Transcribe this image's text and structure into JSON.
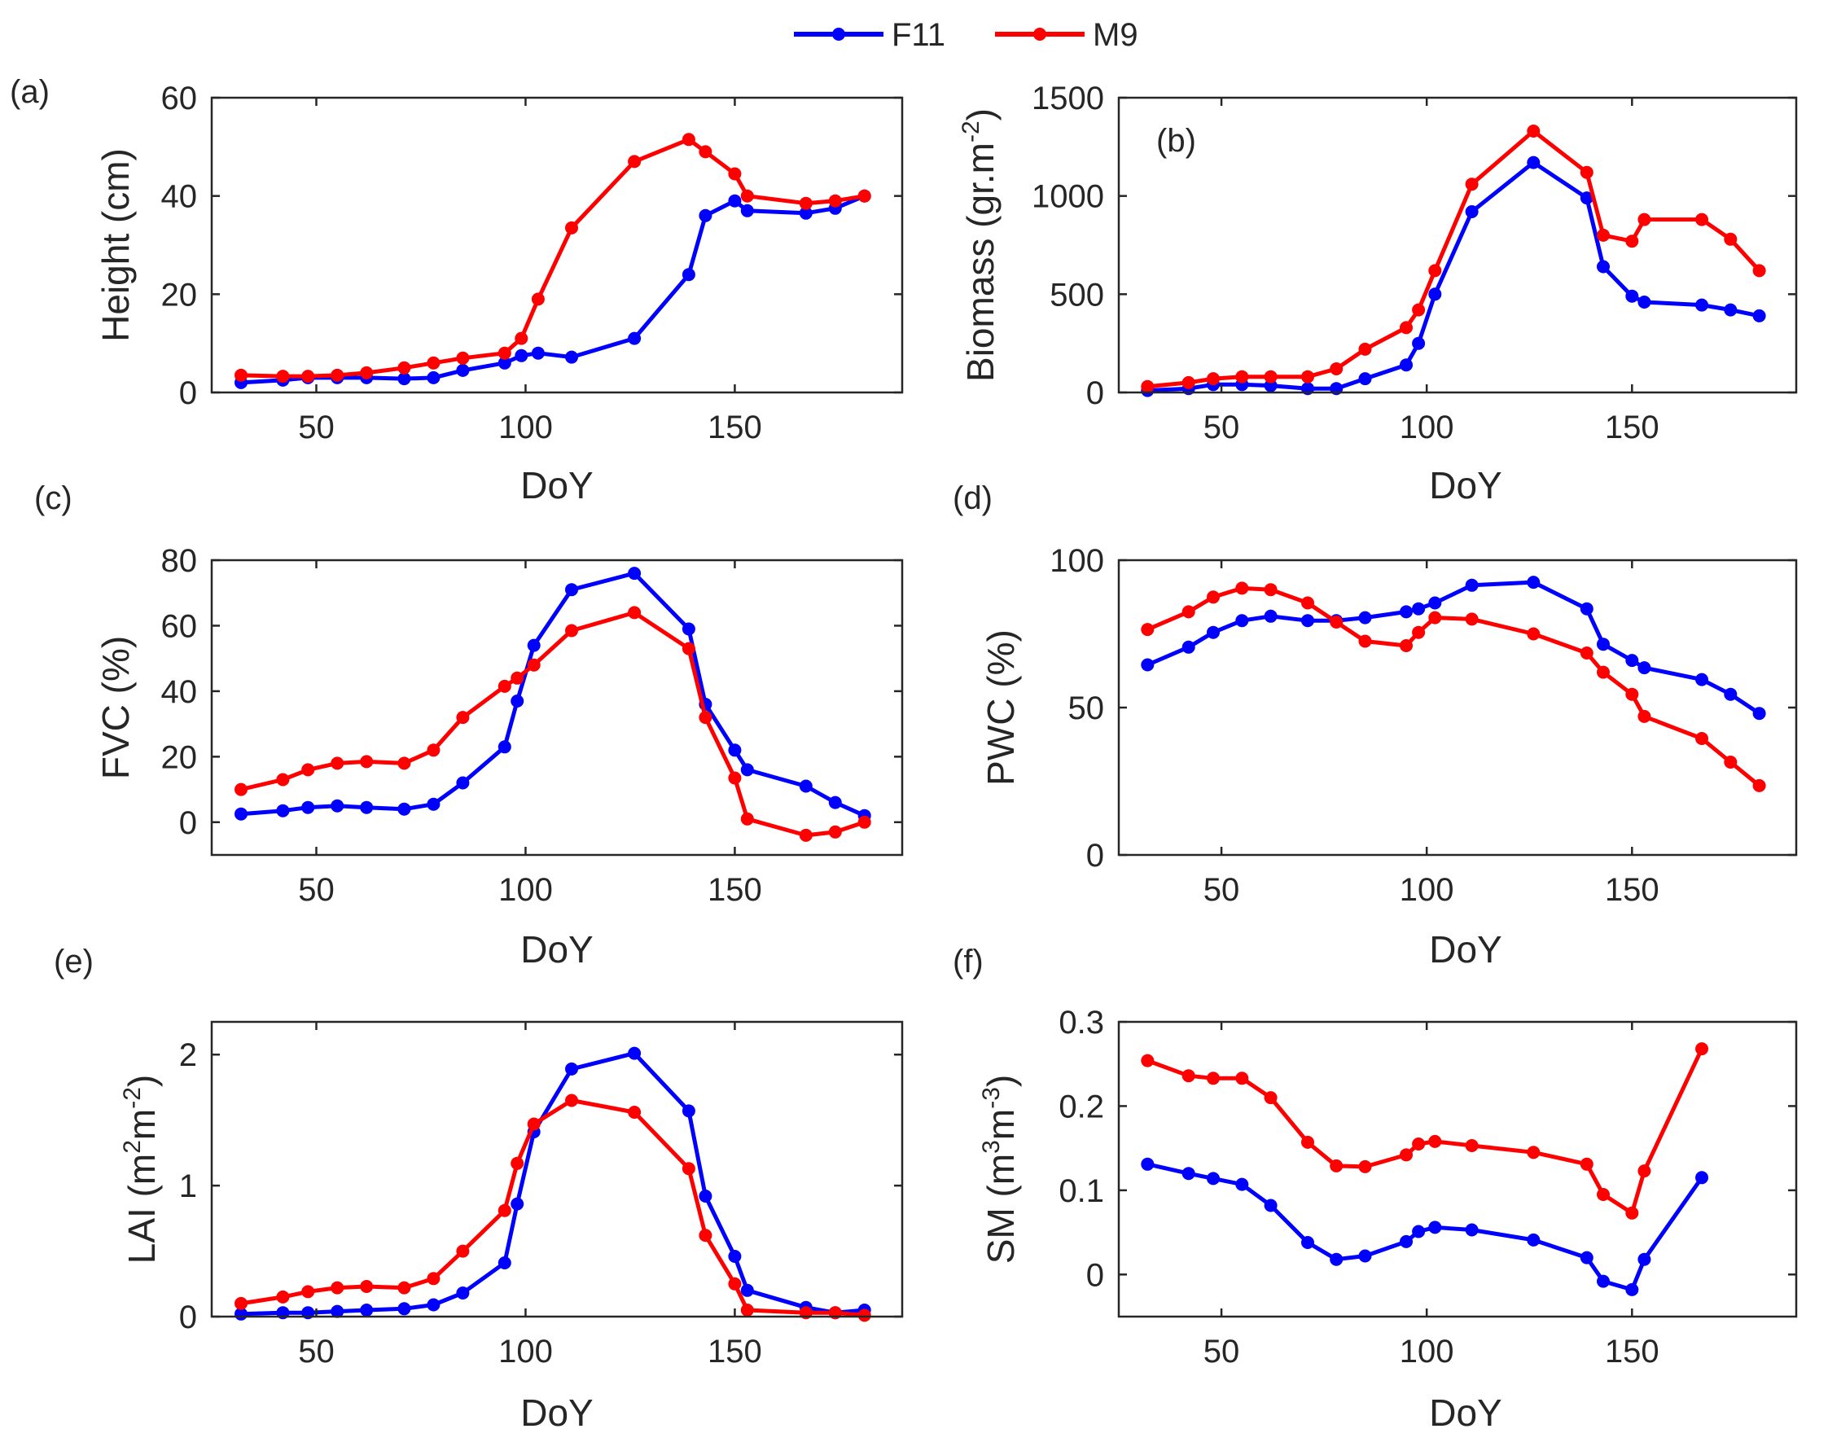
{
  "legend": {
    "entries": [
      {
        "name": "F11",
        "color": "#0000ff"
      },
      {
        "name": "M9",
        "color": "#ff0000"
      }
    ]
  },
  "chart_data": [
    {
      "id": "a",
      "tag": "(a)",
      "type": "line",
      "title": "",
      "xlabel": "DoY",
      "ylabel": "Height (cm)",
      "xlim": [
        25,
        190
      ],
      "ylim": [
        0,
        60
      ],
      "xticks": [
        50,
        100,
        150
      ],
      "yticks": [
        0,
        20,
        40,
        60
      ],
      "series": [
        {
          "name": "F11",
          "color": "#0000ff",
          "x": [
            32,
            42,
            48,
            55,
            62,
            71,
            78,
            85,
            95,
            99,
            103,
            111,
            126,
            139,
            143,
            150,
            153,
            167,
            174,
            181
          ],
          "y": [
            2,
            2.5,
            3,
            3,
            3,
            2.8,
            3,
            4.5,
            6,
            7.5,
            8,
            7.2,
            11,
            24,
            36,
            39,
            37,
            36.5,
            37.5,
            40
          ]
        },
        {
          "name": "M9",
          "color": "#ff0000",
          "x": [
            32,
            42,
            48,
            55,
            62,
            71,
            78,
            85,
            95,
            99,
            103,
            111,
            126,
            139,
            143,
            150,
            153,
            167,
            174,
            181
          ],
          "y": [
            3.5,
            3.3,
            3.3,
            3.5,
            4,
            5,
            6,
            7,
            8,
            11,
            19,
            33.5,
            47,
            51.5,
            49,
            44.5,
            40,
            38.5,
            39,
            40
          ]
        }
      ]
    },
    {
      "id": "b",
      "tag": "(b)",
      "type": "line",
      "title": "",
      "xlabel": "DoY",
      "ylabel": "Biomass (gr.m",
      "ylabel_superscript": "-2",
      "ylabel_suffix": ")",
      "xlim": [
        25,
        190
      ],
      "ylim": [
        0,
        1500
      ],
      "xticks": [
        50,
        100,
        150
      ],
      "yticks": [
        0,
        500,
        1000,
        1500
      ],
      "series": [
        {
          "name": "F11",
          "color": "#0000ff",
          "x": [
            32,
            42,
            48,
            55,
            62,
            71,
            78,
            85,
            95,
            98,
            102,
            111,
            126,
            139,
            143,
            150,
            153,
            167,
            174,
            181
          ],
          "y": [
            10,
            20,
            40,
            40,
            35,
            20,
            20,
            70,
            140,
            250,
            500,
            920,
            1170,
            990,
            640,
            490,
            460,
            445,
            420,
            390
          ]
        },
        {
          "name": "M9",
          "color": "#ff0000",
          "x": [
            32,
            42,
            48,
            55,
            62,
            71,
            78,
            85,
            95,
            98,
            102,
            111,
            126,
            139,
            143,
            150,
            153,
            167,
            174,
            181
          ],
          "y": [
            30,
            50,
            70,
            80,
            80,
            80,
            120,
            220,
            330,
            420,
            620,
            1060,
            1330,
            1120,
            800,
            770,
            880,
            880,
            780,
            620
          ]
        }
      ]
    },
    {
      "id": "c",
      "tag": "(c)",
      "type": "line",
      "title": "",
      "xlabel": "DoY",
      "ylabel": "FVC (%)",
      "xlim": [
        25,
        190
      ],
      "ylim": [
        -10,
        80
      ],
      "xticks": [
        50,
        100,
        150
      ],
      "yticks": [
        0,
        20,
        40,
        60,
        80
      ],
      "series": [
        {
          "name": "F11",
          "color": "#0000ff",
          "x": [
            32,
            42,
            48,
            55,
            62,
            71,
            78,
            85,
            95,
            98,
            102,
            111,
            126,
            139,
            143,
            150,
            153,
            167,
            174,
            181
          ],
          "y": [
            2.5,
            3.5,
            4.5,
            5,
            4.5,
            4,
            5.5,
            12,
            23,
            37,
            54,
            71,
            76,
            59,
            36,
            22,
            16,
            11,
            6,
            2
          ]
        },
        {
          "name": "M9",
          "color": "#ff0000",
          "x": [
            32,
            42,
            48,
            55,
            62,
            71,
            78,
            85,
            95,
            98,
            102,
            111,
            126,
            139,
            143,
            150,
            153,
            167,
            174,
            181
          ],
          "y": [
            10,
            13,
            16,
            18,
            18.5,
            18,
            22,
            32,
            41.5,
            44,
            48,
            58.5,
            64,
            53,
            32,
            13.5,
            1,
            -4,
            -3,
            0
          ]
        }
      ]
    },
    {
      "id": "d",
      "tag": "(d)",
      "type": "line",
      "title": "",
      "xlabel": "DoY",
      "ylabel": "PWC (%)",
      "xlim": [
        25,
        190
      ],
      "ylim": [
        0,
        100
      ],
      "xticks": [
        50,
        100,
        150
      ],
      "yticks": [
        0,
        50,
        100
      ],
      "series": [
        {
          "name": "F11",
          "color": "#0000ff",
          "x": [
            32,
            42,
            48,
            55,
            62,
            71,
            78,
            85,
            95,
            98,
            102,
            111,
            126,
            139,
            143,
            150,
            153,
            167,
            174,
            181
          ],
          "y": [
            64.5,
            70.5,
            75.5,
            79.5,
            81,
            79.5,
            79.5,
            80.5,
            82.5,
            83.5,
            85.5,
            91.5,
            92.5,
            83.5,
            71.5,
            66,
            63.5,
            59.5,
            54.5,
            48
          ]
        },
        {
          "name": "M9",
          "color": "#ff0000",
          "x": [
            32,
            42,
            48,
            55,
            62,
            71,
            78,
            85,
            95,
            98,
            102,
            111,
            126,
            139,
            143,
            150,
            153,
            167,
            174,
            181
          ],
          "y": [
            76.5,
            82.5,
            87.5,
            90.5,
            90,
            85.5,
            79,
            72.5,
            71,
            75.5,
            80.5,
            80,
            75,
            68.5,
            62,
            54.5,
            47,
            39.5,
            31.5,
            23.5
          ]
        }
      ]
    },
    {
      "id": "e",
      "tag": "(e)",
      "type": "line",
      "title": "",
      "xlabel": "DoY",
      "ylabel": "LAI (m",
      "ylabel_superscript": "2",
      "ylabel_mid": "m",
      "ylabel_superscript2": "-2",
      "ylabel_suffix": ")",
      "xlim": [
        25,
        190
      ],
      "ylim": [
        0,
        2.25
      ],
      "xticks": [
        50,
        100,
        150
      ],
      "yticks": [
        0,
        1,
        2
      ],
      "series": [
        {
          "name": "F11",
          "color": "#0000ff",
          "x": [
            32,
            42,
            48,
            55,
            62,
            71,
            78,
            85,
            95,
            98,
            102,
            111,
            126,
            139,
            143,
            150,
            153,
            167,
            174,
            181
          ],
          "y": [
            0.02,
            0.03,
            0.03,
            0.04,
            0.05,
            0.06,
            0.09,
            0.18,
            0.41,
            0.86,
            1.41,
            1.89,
            2.01,
            1.57,
            0.92,
            0.46,
            0.2,
            0.07,
            0.03,
            0.05
          ]
        },
        {
          "name": "M9",
          "color": "#ff0000",
          "x": [
            32,
            42,
            48,
            55,
            62,
            71,
            78,
            85,
            95,
            98,
            102,
            111,
            126,
            139,
            143,
            150,
            153,
            167,
            174,
            181
          ],
          "y": [
            0.1,
            0.15,
            0.19,
            0.22,
            0.23,
            0.22,
            0.29,
            0.5,
            0.81,
            1.17,
            1.47,
            1.65,
            1.56,
            1.13,
            0.62,
            0.25,
            0.05,
            0.03,
            0.03,
            0.01
          ]
        }
      ]
    },
    {
      "id": "f",
      "tag": "(f)",
      "type": "line",
      "title": "",
      "xlabel": "DoY",
      "ylabel": "SM (m",
      "ylabel_superscript": "3",
      "ylabel_mid": "m",
      "ylabel_superscript2": "-3",
      "ylabel_suffix": ")",
      "xlim": [
        25,
        190
      ],
      "ylim": [
        -0.05,
        0.3
      ],
      "xticks": [
        50,
        100,
        150
      ],
      "yticks": [
        0,
        0.1,
        0.2,
        0.3
      ],
      "series": [
        {
          "name": "F11",
          "color": "#0000ff",
          "x": [
            32,
            42,
            48,
            55,
            62,
            71,
            78,
            85,
            95,
            98,
            102,
            111,
            126,
            139,
            143,
            150,
            153,
            167
          ],
          "y": [
            0.131,
            0.12,
            0.114,
            0.107,
            0.082,
            0.038,
            0.018,
            0.022,
            0.039,
            0.051,
            0.056,
            0.053,
            0.041,
            0.02,
            -0.008,
            -0.018,
            0.018,
            0.115
          ]
        },
        {
          "name": "M9",
          "color": "#ff0000",
          "x": [
            32,
            42,
            48,
            55,
            62,
            71,
            78,
            85,
            95,
            98,
            102,
            111,
            126,
            139,
            143,
            150,
            153,
            167
          ],
          "y": [
            0.254,
            0.236,
            0.233,
            0.233,
            0.21,
            0.157,
            0.129,
            0.128,
            0.142,
            0.155,
            0.158,
            0.153,
            0.145,
            0.131,
            0.095,
            0.073,
            0.123,
            0.268
          ]
        }
      ]
    }
  ]
}
